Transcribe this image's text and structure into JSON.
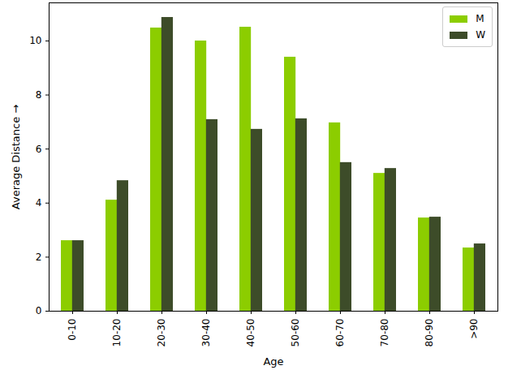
{
  "chart_data": {
    "type": "bar",
    "xlabel": "Age",
    "ylabel": "Average Distance",
    "categories": [
      "0-10",
      "10-20",
      "20-30",
      "30-40",
      "40-50",
      "50-60",
      "60-70",
      "70-80",
      "80-90",
      ">90"
    ],
    "series": [
      {
        "name": "M",
        "color": "#8ccd00",
        "values": [
          2.61,
          4.11,
          10.48,
          10.0,
          10.51,
          9.4,
          6.97,
          5.1,
          3.45,
          2.34
        ]
      },
      {
        "name": "W",
        "color": "#3d4c29",
        "values": [
          2.61,
          4.83,
          10.87,
          7.09,
          6.73,
          7.12,
          5.5,
          5.28,
          3.48,
          2.49
        ]
      }
    ],
    "ylim": [
      0,
      11.41
    ],
    "yticks": [
      0,
      2,
      4,
      6,
      8,
      10
    ],
    "grid": false,
    "legend": "upper right"
  }
}
